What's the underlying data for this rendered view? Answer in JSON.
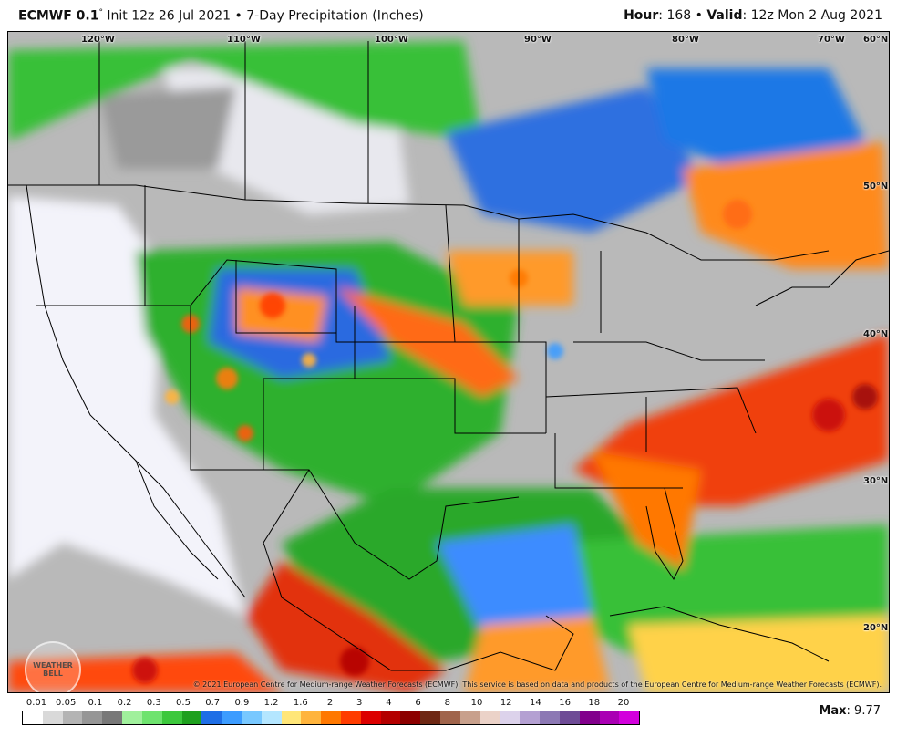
{
  "header": {
    "model": "ECMWF 0.1",
    "degree": "°",
    "init": " Init 12z 26 Jul 2021 • 7-Day Precipitation (Inches)",
    "hour_label": "Hour",
    "hour_value": ": 168 • ",
    "valid_label": "Valid",
    "valid_value": ": 12z Mon 2 Aug 2021"
  },
  "map": {
    "lon_labels": [
      "120°W",
      "110°W",
      "100°W",
      "90°W",
      "80°W",
      "70°W",
      "60°N"
    ],
    "lat_labels": [
      "50°N",
      "40°N",
      "30°N",
      "20°N"
    ],
    "copyright": "© 2021 European Centre for Medium-range Weather Forecasts (ECMWF). This service is based on data and products of the European Centre for Medium-range Weather Forecasts (ECMWF).",
    "logo_text": "WEATHER BELL"
  },
  "legend": {
    "labels": [
      "0.01",
      "0.05",
      "0.1",
      "0.2",
      "0.3",
      "0.5",
      "0.7",
      "0.9",
      "1.2",
      "1.6",
      "2",
      "3",
      "4",
      "6",
      "8",
      "10",
      "12",
      "14",
      "16",
      "18",
      "20"
    ],
    "colors": [
      "#ffffff",
      "#d9d9d9",
      "#b4b4b4",
      "#969696",
      "#787878",
      "#a0f09c",
      "#6ee36e",
      "#3cc83c",
      "#1ea01e",
      "#1e6ee6",
      "#3c9cff",
      "#78c8ff",
      "#b4e6ff",
      "#ffe678",
      "#ffb43c",
      "#ff7800",
      "#ff3c00",
      "#dc0000",
      "#b40000",
      "#8c0000",
      "#6e2814",
      "#a0644b",
      "#c8a08c",
      "#ebd2c8",
      "#dcd2eb",
      "#b4a0d2",
      "#8c78b4",
      "#6e4b96",
      "#82008c",
      "#aa00b4",
      "#d200dc"
    ]
  },
  "max_label": "Max",
  "max_value": ": 9.77"
}
